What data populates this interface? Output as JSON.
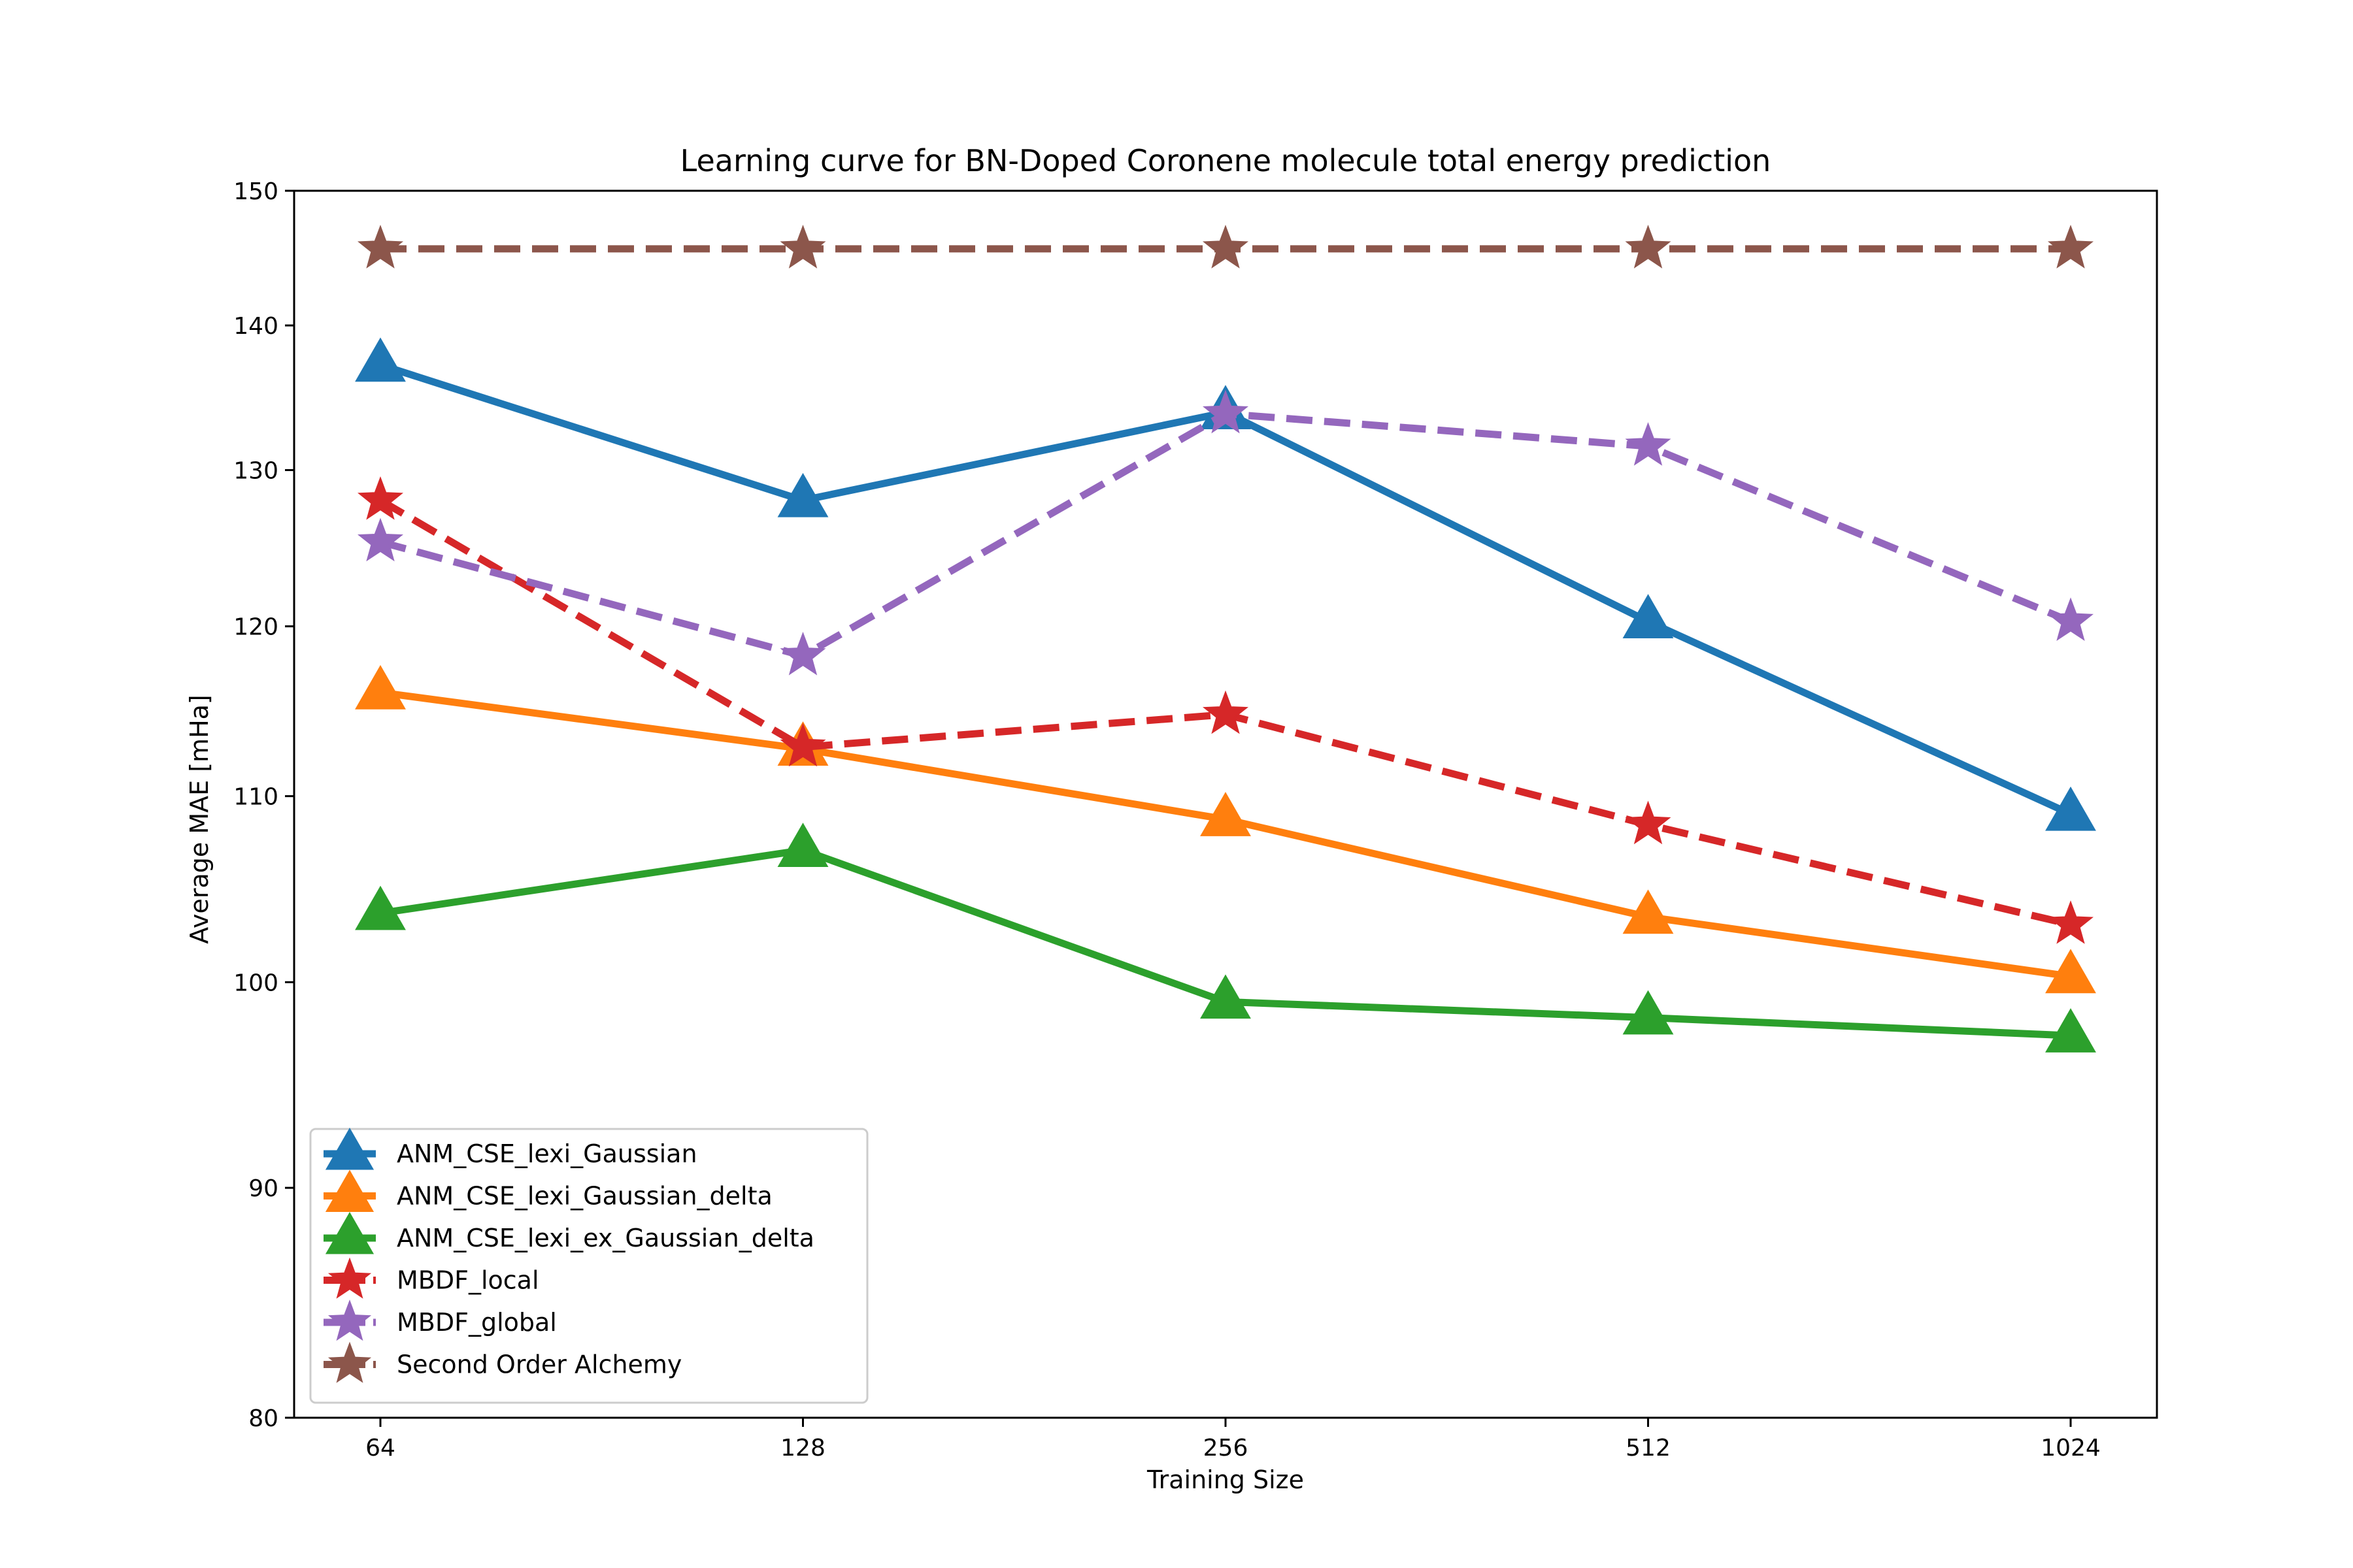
{
  "chart_data": {
    "type": "line",
    "title": "Learning curve for BN-Doped Coronene molecule total energy prediction",
    "xlabel": "Training Size",
    "ylabel": "Average MAE [mHa]",
    "x_scale": "log2",
    "y_scale": "log",
    "x": [
      64,
      128,
      256,
      512,
      1024
    ],
    "x_tick_labels": [
      "64",
      "128",
      "256",
      "512",
      "1024"
    ],
    "ylim": [
      80,
      150
    ],
    "y_ticks": [
      80,
      90,
      100,
      110,
      120,
      130,
      140,
      150
    ],
    "y_tick_labels": [
      "80",
      "90",
      "100",
      "110",
      "120",
      "130",
      "140",
      "150"
    ],
    "grid": false,
    "legend_position": "lower-left",
    "series": [
      {
        "name": "ANM_CSE_lexi_Gaussian",
        "color": "#1f77b4",
        "linestyle": "solid",
        "marker": "triangle",
        "values": [
          137.2,
          128.0,
          133.9,
          120.3,
          109.0
        ]
      },
      {
        "name": "ANM_CSE_lexi_Gaussian_delta",
        "color": "#ff7f0e",
        "linestyle": "solid",
        "marker": "triangle",
        "values": [
          116.0,
          112.7,
          108.7,
          103.4,
          100.3
        ]
      },
      {
        "name": "ANM_CSE_lexi_ex_Gaussian_delta",
        "color": "#2ca02c",
        "linestyle": "solid",
        "marker": "triangle",
        "values": [
          103.6,
          107.0,
          99.0,
          98.2,
          97.3
        ]
      },
      {
        "name": "MBDF_local",
        "color": "#d62728",
        "linestyle": "dashed",
        "marker": "star",
        "values": [
          128.0,
          112.8,
          114.7,
          108.4,
          103.0
        ]
      },
      {
        "name": "MBDF_global",
        "color": "#9467bd",
        "linestyle": "dashed",
        "marker": "star",
        "values": [
          125.3,
          118.2,
          133.8,
          131.6,
          120.3
        ]
      },
      {
        "name": "Second Order Alchemy",
        "color": "#8c564b",
        "linestyle": "dashed",
        "marker": "star",
        "values": [
          145.6,
          145.6,
          145.6,
          145.6,
          145.6
        ]
      }
    ]
  }
}
